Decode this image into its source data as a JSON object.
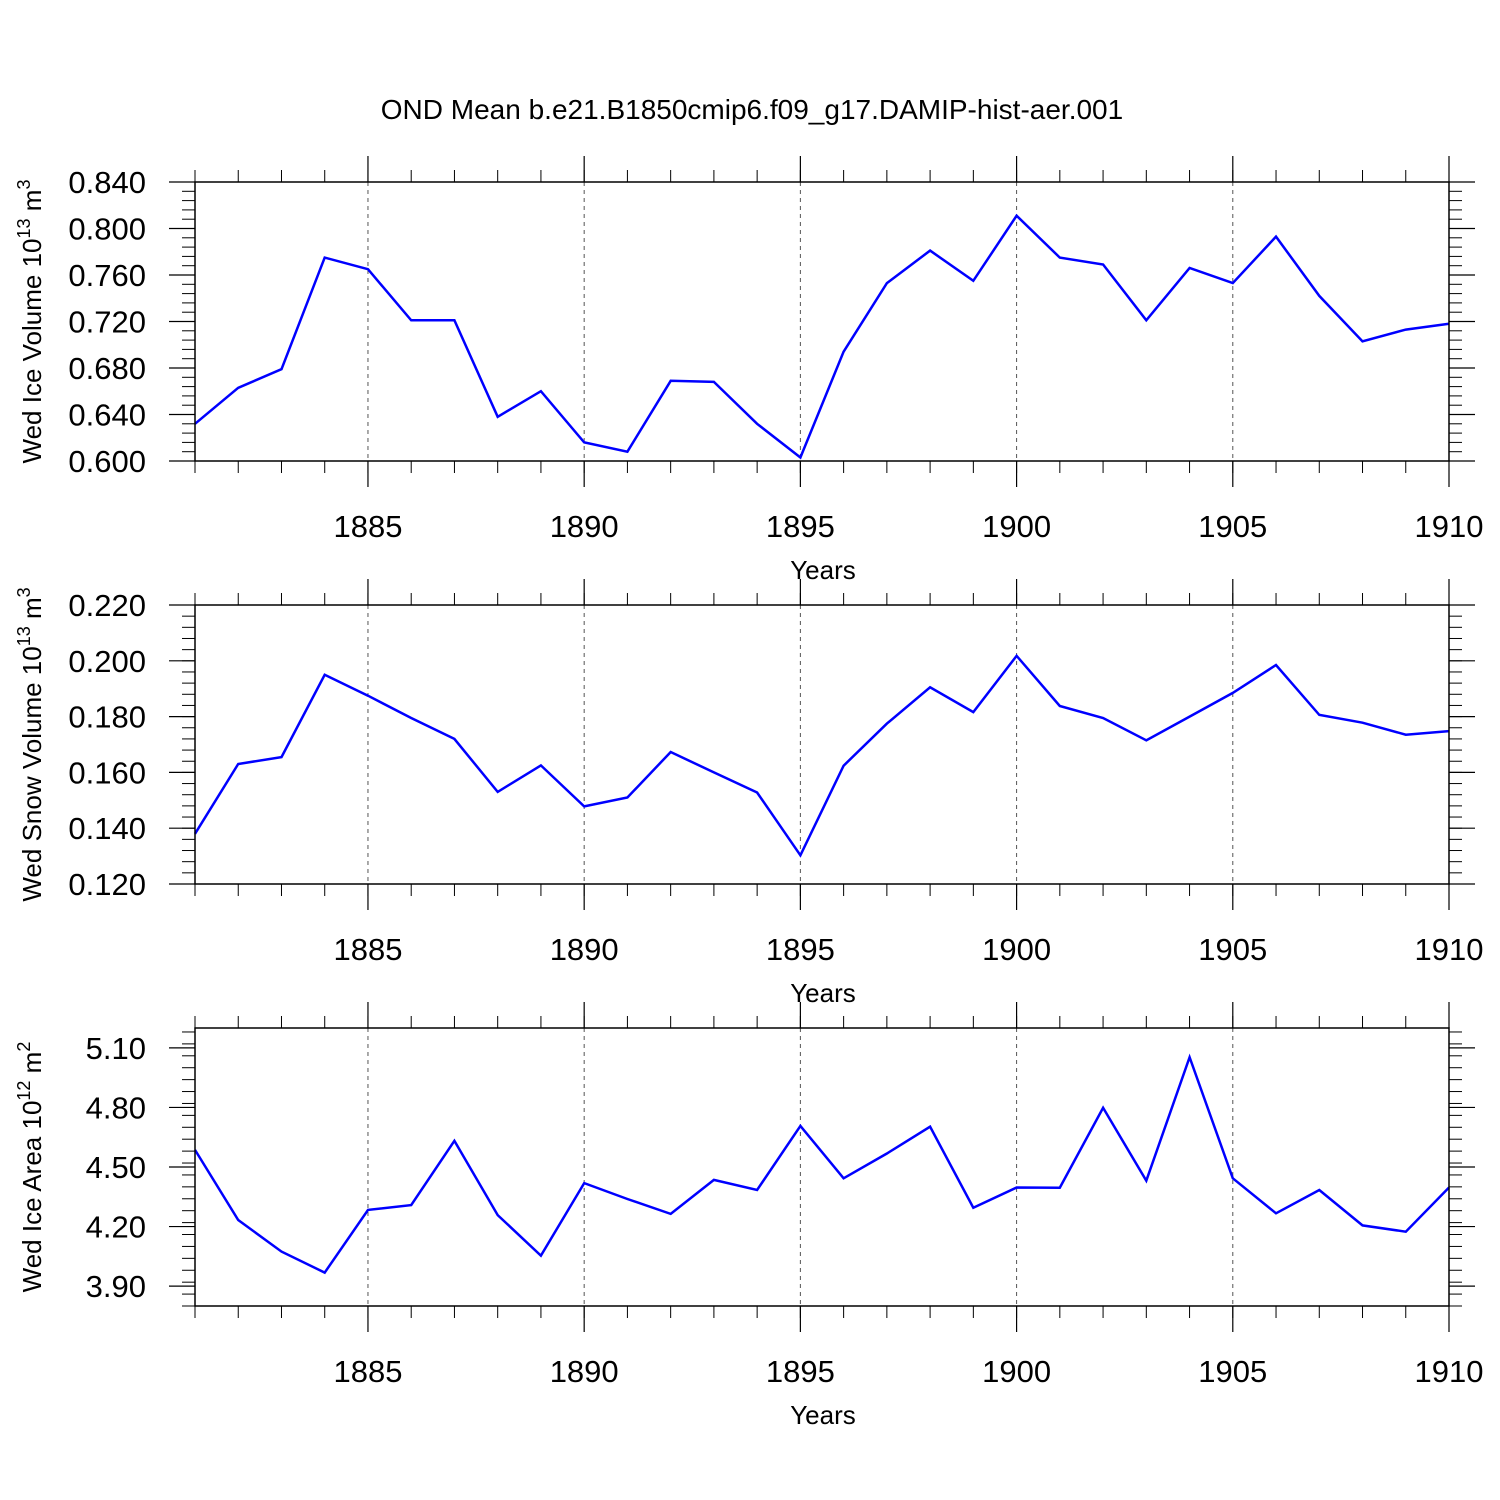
{
  "title": "OND Mean b.e21.B1850cmip6.f09_g17.DAMIP-hist-aer.001",
  "line_color": "#0000ff",
  "chart_data": [
    {
      "type": "line",
      "ylabel": {
        "prefix": "Wed Ice Volume 10",
        "exp": "13",
        "unit": " m",
        "unit_exp": "3"
      },
      "xlabel": "Years",
      "xlim": [
        1881,
        1910
      ],
      "ylim": [
        0.6,
        0.84
      ],
      "yticks": [
        0.6,
        0.64,
        0.68,
        0.72,
        0.76,
        0.8,
        0.84
      ],
      "ytick_labels": [
        "0.600",
        "0.640",
        "0.680",
        "0.720",
        "0.760",
        "0.800",
        "0.840"
      ],
      "yminor": 0.008,
      "xticks": [
        1885,
        1890,
        1895,
        1900,
        1905,
        1910
      ],
      "xtick_labels": [
        "1885",
        "1890",
        "1895",
        "1900",
        "1905",
        "1910"
      ],
      "x": [
        1881,
        1882,
        1883,
        1884,
        1885,
        1886,
        1887,
        1888,
        1889,
        1890,
        1891,
        1892,
        1893,
        1894,
        1895,
        1896,
        1897,
        1898,
        1899,
        1900,
        1901,
        1902,
        1903,
        1904,
        1905,
        1906,
        1907,
        1908,
        1909,
        1910
      ],
      "values": [
        0.632,
        0.663,
        0.679,
        0.775,
        0.765,
        0.721,
        0.721,
        0.638,
        0.66,
        0.616,
        0.608,
        0.669,
        0.668,
        0.632,
        0.603,
        0.694,
        0.753,
        0.781,
        0.755,
        0.811,
        0.775,
        0.769,
        0.721,
        0.766,
        0.753,
        0.793,
        0.742,
        0.703,
        0.713,
        0.718
      ]
    },
    {
      "type": "line",
      "ylabel": {
        "prefix": "Wed Snow Volume 10",
        "exp": "13",
        "unit": " m",
        "unit_exp": "3"
      },
      "xlabel": "Years",
      "xlim": [
        1881,
        1910
      ],
      "ylim": [
        0.12,
        0.22
      ],
      "yticks": [
        0.12,
        0.14,
        0.16,
        0.18,
        0.2,
        0.22
      ],
      "ytick_labels": [
        "0.120",
        "0.140",
        "0.160",
        "0.180",
        "0.200",
        "0.220"
      ],
      "yminor": 0.004,
      "xticks": [
        1885,
        1890,
        1895,
        1900,
        1905,
        1910
      ],
      "xtick_labels": [
        "1885",
        "1890",
        "1895",
        "1900",
        "1905",
        "1910"
      ],
      "x": [
        1881,
        1882,
        1883,
        1884,
        1885,
        1886,
        1887,
        1888,
        1889,
        1890,
        1891,
        1892,
        1893,
        1894,
        1895,
        1896,
        1897,
        1898,
        1899,
        1900,
        1901,
        1902,
        1903,
        1904,
        1905,
        1906,
        1907,
        1908,
        1909,
        1910
      ],
      "values": [
        0.138,
        0.163,
        0.1655,
        0.195,
        0.1875,
        0.1795,
        0.172,
        0.153,
        0.1625,
        0.1478,
        0.151,
        0.1673,
        0.16,
        0.1528,
        0.1303,
        0.1624,
        0.1775,
        0.1905,
        0.1816,
        0.2018,
        0.1838,
        0.1795,
        0.1715,
        0.18,
        0.1885,
        0.1985,
        0.1806,
        0.1778,
        0.1735,
        0.1748
      ]
    },
    {
      "type": "line",
      "ylabel": {
        "prefix": "Wed Ice Area 10",
        "exp": "12",
        "unit": " m",
        "unit_exp": "2"
      },
      "xlabel": "Years",
      "xlim": [
        1881,
        1910
      ],
      "ylim": [
        3.8,
        5.2
      ],
      "yticks": [
        3.9,
        4.2,
        4.5,
        4.8,
        5.1
      ],
      "ytick_labels": [
        "3.90",
        "4.20",
        "4.50",
        "4.80",
        "5.10"
      ],
      "yminor": 0.06,
      "xticks": [
        1885,
        1890,
        1895,
        1900,
        1905,
        1910
      ],
      "xtick_labels": [
        "1885",
        "1890",
        "1895",
        "1900",
        "1905",
        "1910"
      ],
      "x": [
        1881,
        1882,
        1883,
        1884,
        1885,
        1886,
        1887,
        1888,
        1889,
        1890,
        1891,
        1892,
        1893,
        1894,
        1895,
        1896,
        1897,
        1898,
        1899,
        1900,
        1901,
        1902,
        1903,
        1904,
        1905,
        1906,
        1907,
        1908,
        1909,
        1910
      ],
      "values": [
        4.586,
        4.233,
        4.074,
        3.968,
        4.284,
        4.308,
        4.632,
        4.258,
        4.054,
        4.419,
        4.339,
        4.264,
        4.435,
        4.384,
        4.707,
        4.443,
        4.568,
        4.703,
        4.295,
        4.397,
        4.396,
        4.798,
        4.431,
        5.053,
        4.443,
        4.267,
        4.384,
        4.206,
        4.174,
        4.397
      ]
    }
  ]
}
